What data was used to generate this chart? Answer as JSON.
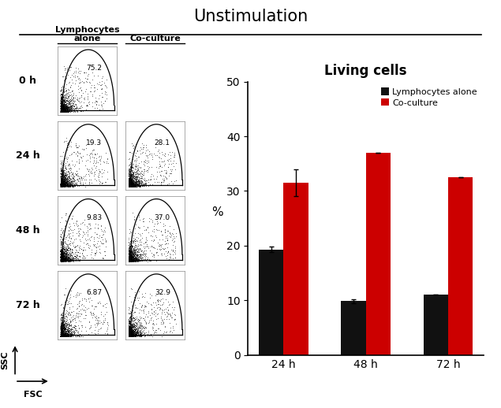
{
  "title": "Unstimulation",
  "title_fontsize": 15,
  "title_fontweight": "normal",
  "flow_labels_col": [
    "Lymphocytes\nalone",
    "Co-culture"
  ],
  "flow_labels_row": [
    "0 h",
    "24 h",
    "48 h",
    "72 h"
  ],
  "flow_values": [
    [
      "75.2",
      null
    ],
    [
      "19.3",
      "28.1"
    ],
    [
      "9.83",
      "37.0"
    ],
    [
      "6.87",
      "32.9"
    ]
  ],
  "bar_title": "Living cells",
  "bar_title_fontsize": 12,
  "bar_categories": [
    "24 h",
    "48 h",
    "72 h"
  ],
  "lymphocytes_values": [
    19.3,
    9.83,
    11.0
  ],
  "coculture_values": [
    31.5,
    37.0,
    32.5
  ],
  "coculture_errors": [
    2.5,
    0.0,
    0.0
  ],
  "lymphocytes_errors": [
    0.5,
    0.3,
    0.0
  ],
  "bar_color_lymphocytes": "#111111",
  "bar_color_coculture": "#cc0000",
  "ylabel": "%",
  "ylim": [
    0,
    50
  ],
  "yticks": [
    0,
    10,
    20,
    30,
    40,
    50
  ],
  "legend_labels": [
    "Lymphocytes alone",
    "Co-culture"
  ],
  "background_color": "#ffffff"
}
